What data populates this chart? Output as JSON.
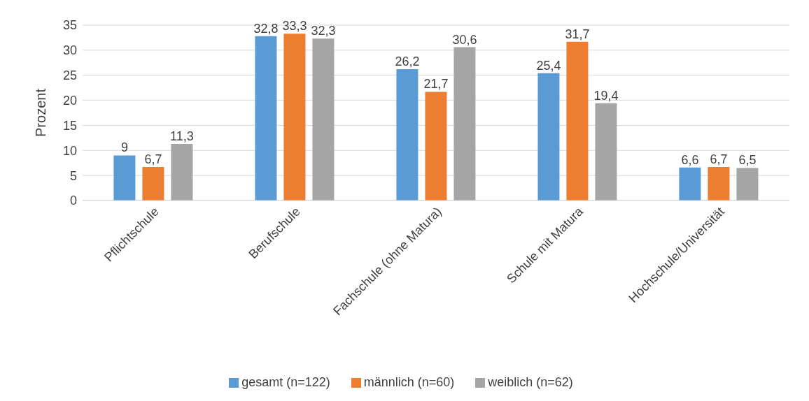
{
  "chart_data": {
    "type": "bar",
    "ylabel": "Prozent",
    "categories": [
      "Pflichtschule",
      "Berufschule",
      "Fachschule (ohne Matura)",
      "Schule mit Matura",
      "Hochschule/Universität"
    ],
    "series": [
      {
        "name": "gesamt (n=122)",
        "color": "#5b9bd5",
        "values": [
          9,
          32.8,
          26.2,
          25.4,
          6.6
        ],
        "value_labels": [
          "9",
          "32,8",
          "26,2",
          "25,4",
          "6,6"
        ]
      },
      {
        "name": "männlich (n=60)",
        "color": "#ed7d31",
        "values": [
          6.7,
          33.3,
          21.7,
          31.7,
          6.7
        ],
        "value_labels": [
          "6,7",
          "33,3",
          "21,7",
          "31,7",
          "6,7"
        ]
      },
      {
        "name": "weiblich (n=62)",
        "color": "#a5a5a5",
        "values": [
          11.3,
          32.3,
          30.6,
          19.4,
          6.5
        ],
        "value_labels": [
          "11,3",
          "32,3",
          "30,6",
          "19,4",
          "6,5"
        ]
      }
    ],
    "ylim": [
      0,
      35
    ],
    "yticks": [
      0,
      5,
      10,
      15,
      20,
      25,
      30,
      35
    ],
    "grid": "y",
    "legend": "bottom"
  }
}
